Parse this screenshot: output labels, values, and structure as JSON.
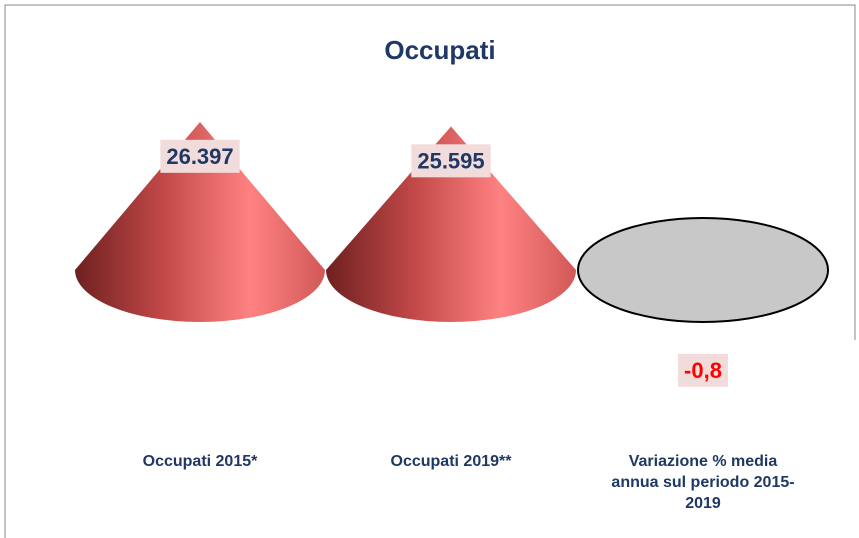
{
  "chart_data": {
    "type": "cone",
    "title": "Occupati",
    "categories": [
      "Occupati 2015*",
      "Occupati 2019**",
      "Variazione % media annua sul periodo 2015-2019"
    ],
    "values": [
      26397,
      25595,
      -0.8
    ],
    "value_labels": [
      "26.397",
      "25.595",
      "-0,8"
    ],
    "colors": [
      "#e86a6a",
      "#e86a6a",
      "#c8c8c8"
    ],
    "label_colors": [
      "#1f3864",
      "#1f3864",
      "#ff0000"
    ]
  }
}
